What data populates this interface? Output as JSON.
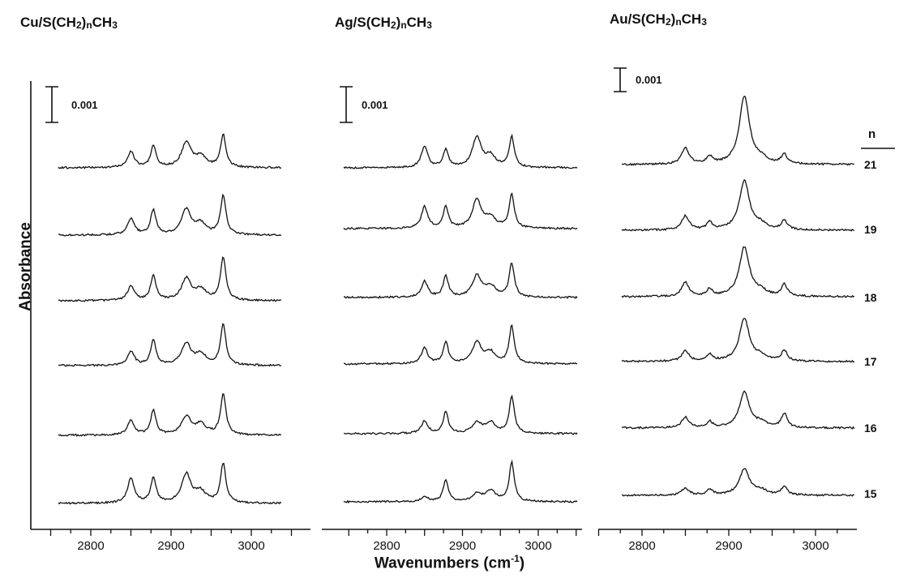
{
  "panels": [
    {
      "metal": "Cu",
      "suffix1": "/S(CH",
      "sub1": "2",
      "mid": ")",
      "sub2": "n",
      "suffix2": "CH",
      "sub3": "3"
    },
    {
      "metal": "Ag",
      "suffix1": "/S(CH",
      "sub1": "2",
      "mid": ")",
      "sub2": "n",
      "suffix2": "CH",
      "sub3": "3"
    },
    {
      "metal": "Au",
      "suffix1": "/S(CH",
      "sub1": "2",
      "mid": ")",
      "sub2": "n",
      "suffix2": "CH",
      "sub3": "3"
    }
  ],
  "axis": {
    "ylabel": "Absorbance",
    "xlabel_main": "Wavenumbers (cm",
    "xlabel_sup": "-1",
    "xlabel_end": ")",
    "ticks": [
      "2800",
      "2900",
      "3000"
    ]
  },
  "scale_bar_label": "0.001",
  "n_header": "n",
  "n_values": [
    "21",
    "19",
    "18",
    "17",
    "16",
    "15"
  ],
  "chart_data": {
    "type": "line",
    "subtype": "stacked IR spectra, three panels",
    "xlabel": "Wavenumbers (cm-1)",
    "ylabel": "Absorbance",
    "xlim": [
      2750,
      3050
    ],
    "x_ticks": [
      2800,
      2900,
      3000
    ],
    "scale_bar": 0.001,
    "series_order_top_to_bottom": [
      21,
      19,
      18,
      17,
      16,
      15
    ],
    "peaks_cm1": {
      "Cu": [
        2850,
        2878,
        2919,
        2937,
        2965
      ],
      "Ag": [
        2850,
        2878,
        2919,
        2937,
        2965
      ],
      "Au": [
        2850,
        2878,
        2918,
        2937,
        2964
      ]
    },
    "peak_heights": {
      "Cu": [
        [
          0.00045,
          0.0006,
          0.0007,
          0.0003,
          0.0009
        ],
        [
          0.00045,
          0.0007,
          0.0007,
          0.0003,
          0.0011
        ],
        [
          0.0004,
          0.0007,
          0.0006,
          0.0003,
          0.0012
        ],
        [
          0.0004,
          0.0007,
          0.0006,
          0.0003,
          0.00115
        ],
        [
          0.0004,
          0.0007,
          0.0005,
          0.0003,
          0.00115
        ],
        [
          0.0007,
          0.0007,
          0.0008,
          0.0003,
          0.0011
        ]
      ],
      "Ag": [
        [
          0.0006,
          0.0005,
          0.00085,
          0.0003,
          0.00085
        ],
        [
          0.0006,
          0.0006,
          0.0008,
          0.0003,
          0.00095
        ],
        [
          0.00045,
          0.0006,
          0.0006,
          0.0003,
          0.00095
        ],
        [
          0.00045,
          0.0006,
          0.0006,
          0.0003,
          0.00105
        ],
        [
          0.00035,
          0.0006,
          0.0003,
          0.0003,
          0.00105
        ],
        [
          0.00015,
          0.0006,
          0.0002,
          0.0003,
          0.0011
        ]
      ],
      "Au": [
        [
          0.0007,
          0.0003,
          0.0029,
          0.0002,
          0.0004
        ],
        [
          0.0006,
          0.0003,
          0.0021,
          0.0002,
          0.0004
        ],
        [
          0.0006,
          0.0003,
          0.0021,
          0.0002,
          0.0005
        ],
        [
          0.00045,
          0.0003,
          0.0018,
          0.0002,
          0.00045
        ],
        [
          0.00045,
          0.00025,
          0.0015,
          0.0002,
          0.0006
        ],
        [
          0.0003,
          0.00025,
          0.0011,
          0.0002,
          0.00035
        ]
      ]
    },
    "peak_widths_cm1": [
      5,
      4,
      7,
      8,
      4
    ]
  }
}
